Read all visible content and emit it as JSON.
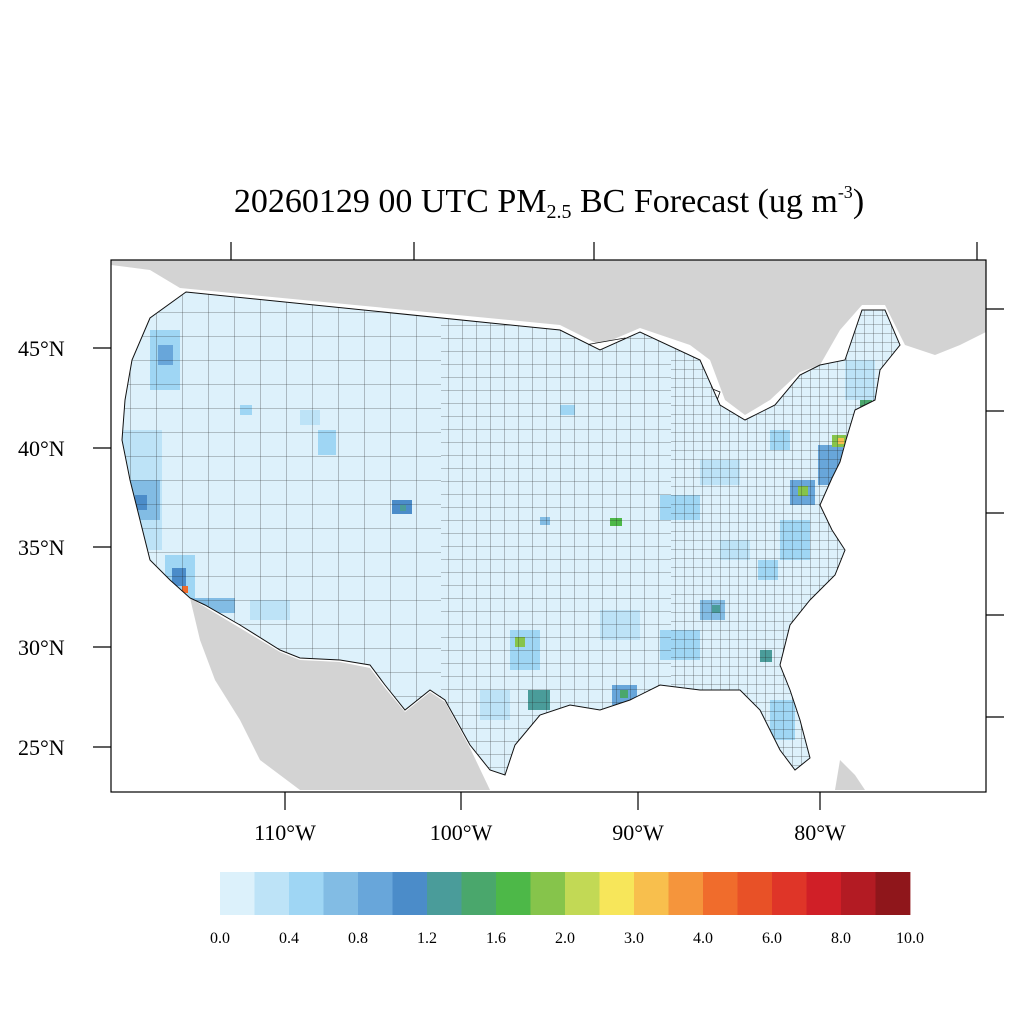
{
  "title": {
    "prefix": "20260129 00 UTC PM",
    "sub": "2.5",
    "middle": " BC Forecast (ug m",
    "sup": "-3",
    "suffix": ")"
  },
  "lat_labels": [
    "45°N",
    "40°N",
    "35°N",
    "30°N",
    "25°N"
  ],
  "lon_labels": [
    "110°W",
    "100°W",
    "90°W",
    "80°W"
  ],
  "colorbar": {
    "labels": [
      "0.0",
      "0.4",
      "0.8",
      "1.2",
      "1.6",
      "2.0",
      "3.0",
      "4.0",
      "6.0",
      "8.0",
      "10.0"
    ],
    "colors": [
      "#dcf1fb",
      "#bde3f7",
      "#9fd6f4",
      "#82bce4",
      "#68a6da",
      "#4b8cc9",
      "#4a9c9a",
      "#4aa76c",
      "#4db848",
      "#86c44b",
      "#c2d955",
      "#f7e65a",
      "#f8bf4d",
      "#f5953c",
      "#f06c2c",
      "#e85127",
      "#df3528",
      "#d01f27",
      "#b31b23",
      "#8f161b"
    ]
  },
  "colors": {
    "land_other": "#d3d3d3",
    "water": "#ffffff",
    "us_base": "#ddf1fb",
    "county_border": "#111111"
  }
}
